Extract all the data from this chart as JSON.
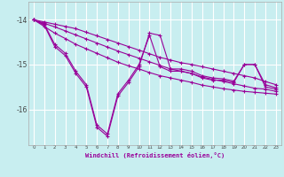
{
  "xlabel": "Windchill (Refroidissement éolien,°C)",
  "background_color": "#c8eef0",
  "grid_color": "#ffffff",
  "line_color": "#990099",
  "xlim": [
    -0.5,
    23.5
  ],
  "ylim": [
    -16.8,
    -13.6
  ],
  "yticks": [
    -16,
    -15,
    -14
  ],
  "xticks": [
    0,
    1,
    2,
    3,
    4,
    5,
    6,
    7,
    8,
    9,
    10,
    11,
    12,
    13,
    14,
    15,
    16,
    17,
    18,
    19,
    20,
    21,
    22,
    23
  ],
  "lines": [
    {
      "y": [
        -14.0,
        -14.05,
        -14.1,
        -14.15,
        -14.2,
        -14.28,
        -14.36,
        -14.44,
        -14.52,
        -14.6,
        -14.68,
        -14.76,
        -14.84,
        -14.9,
        -14.96,
        -15.0,
        -15.05,
        -15.1,
        -15.15,
        -15.2,
        -15.25,
        -15.3,
        -15.38,
        -15.45
      ]
    },
    {
      "y": [
        -14.0,
        -14.08,
        -14.16,
        -14.25,
        -14.34,
        -14.43,
        -14.52,
        -14.61,
        -14.7,
        -14.78,
        -14.86,
        -14.94,
        -15.02,
        -15.1,
        -15.15,
        -15.2,
        -15.28,
        -15.33,
        -15.38,
        -15.43,
        -15.48,
        -15.53,
        -15.55,
        -15.6
      ]
    },
    {
      "y": [
        -14.0,
        -14.15,
        -14.3,
        -14.42,
        -14.55,
        -14.65,
        -14.75,
        -14.85,
        -14.95,
        -15.03,
        -15.1,
        -15.18,
        -15.25,
        -15.3,
        -15.35,
        -15.4,
        -15.46,
        -15.5,
        -15.54,
        -15.57,
        -15.6,
        -15.62,
        -15.64,
        -15.66
      ]
    },
    {
      "y": [
        -14.0,
        -14.1,
        -14.55,
        -14.75,
        -15.15,
        -15.45,
        -16.35,
        -16.55,
        -15.65,
        -15.35,
        -15.0,
        -14.35,
        -15.05,
        -15.15,
        -15.15,
        -15.2,
        -15.3,
        -15.35,
        -15.35,
        -15.4,
        -15.0,
        -15.0,
        -15.5,
        -15.55
      ]
    },
    {
      "y": [
        -14.0,
        -14.12,
        -14.6,
        -14.8,
        -15.2,
        -15.5,
        -16.4,
        -16.6,
        -15.7,
        -15.4,
        -15.05,
        -14.3,
        -14.35,
        -15.1,
        -15.1,
        -15.15,
        -15.25,
        -15.3,
        -15.32,
        -15.37,
        -15.0,
        -15.0,
        -15.45,
        -15.52
      ]
    }
  ]
}
